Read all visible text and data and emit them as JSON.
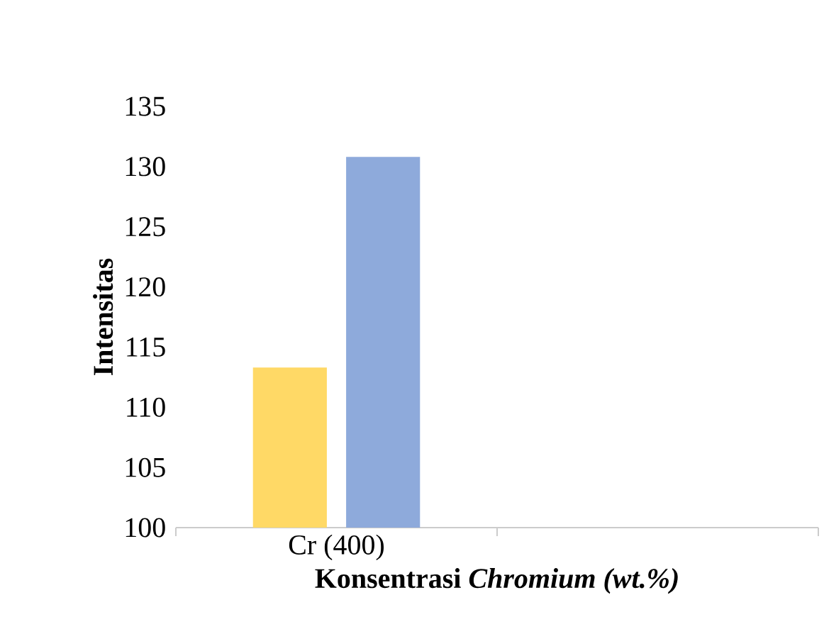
{
  "chart_data": {
    "type": "bar",
    "xlabel": "Konsentrasi *Chromium (wt.%)*",
    "ylabel": "Intensitas",
    "categories": [
      "Cr (400)",
      null
    ],
    "series": [
      {
        "color": "#ffd966",
        "values": [
          113.3,
          null
        ]
      },
      {
        "color": "#8eaadb",
        "values": [
          130.8,
          null
        ]
      }
    ],
    "ylim": [
      100,
      135
    ],
    "yticks": [
      100,
      105,
      110,
      115,
      120,
      125,
      130,
      135
    ]
  }
}
